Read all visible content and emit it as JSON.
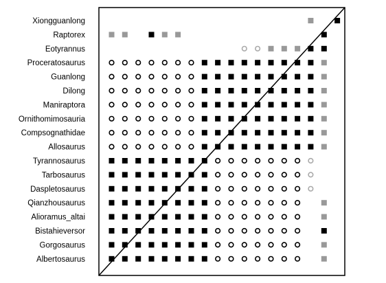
{
  "chart_data": {
    "type": "heatmap",
    "title": "",
    "xlabel": "",
    "ylabel": "",
    "grid": false,
    "legend": "none",
    "rows": [
      "Xiongguanlong",
      "Raptorex",
      "Eotyrannus",
      "Proceratosaurus",
      "Guanlong",
      "Dilong",
      "Maniraptora",
      "Ornithomimosauria",
      "Compsognathidae",
      "Allosaurus",
      "Tyrannosaurus",
      "Tarbosaurus",
      "Daspletosaurus",
      "Qianzhousaurus",
      "Alioramus_altai",
      "Bistahieversor",
      "Gorgosaurus",
      "Albertosaurus"
    ],
    "cell_codes": {
      "B": "filled black square",
      "G": "filled gray square",
      "O": "open circle",
      "C": "open gray circle",
      ".": "empty"
    },
    "matrix": [
      "...............G.B",
      "GG.BGG..........B.",
      "..........CCGGGBB.",
      "OOOOOOOBBBBBBBBBG.",
      "OOOOOOOBBBBBBBBBG.",
      "OOOOOOOBBBBBBBBBG.",
      "OOOOOOOBBBBBBBBBG.",
      "OOOOOOOBBBBBBBBBG.",
      "OOOOOOOBBBBBBBBBG.",
      "OOOOOOOBBBBBBBBBG.",
      "BBBBBBBBOOOOOOOC..",
      "BBBBBBBBOOOOOOOC..",
      "BBBBBBBBOOOOOOOC..",
      "BBBBBBBBOOOOOOO.G.",
      "BBBBBBBBOOOOOOO.G.",
      "BBBBBBBBOOOOOOO.B.",
      "BBBBBBBBOOOOOOO.G.",
      "BBBBBBBBOOOOOOO.G."
    ],
    "colors": {
      "black": "#000000",
      "gray": "#999999",
      "circle_gray": "#aaaaaa"
    }
  }
}
